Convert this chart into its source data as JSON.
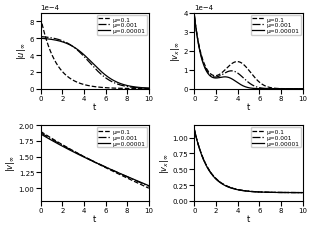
{
  "mu_labels": [
    "μ=0.1",
    "μ=0.001",
    "μ=0.00001"
  ],
  "line_styles": [
    "--",
    "-.",
    "-"
  ],
  "xlim": [
    0,
    10
  ],
  "xlabel": "t",
  "tl_ylim": [
    0,
    0.0009
  ],
  "tr_ylim": [
    0,
    0.0004
  ],
  "bl_ylim": [
    0.8,
    2.0
  ],
  "br_ylim": [
    0,
    1.2
  ],
  "tl_ylabel": "$|u|_\\infty$",
  "tr_ylabel": "$|v_x|_\\infty$",
  "bl_ylabel": "$|v|_\\infty$",
  "br_ylabel": "$|v_x|_\\infty$"
}
